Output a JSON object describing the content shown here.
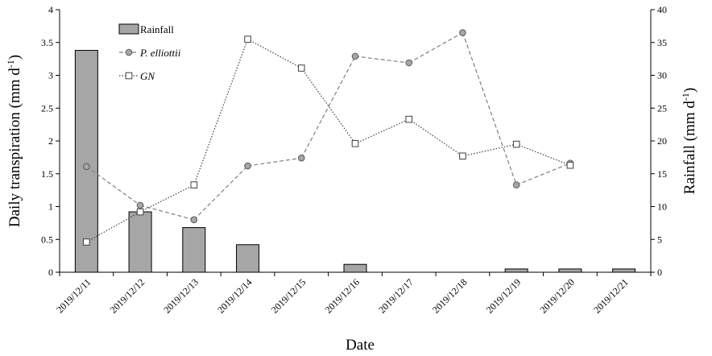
{
  "chart_data": {
    "type": "bar",
    "title": "",
    "xlabel": "Date",
    "ylabel_left": {
      "main": "Daily transpiration (mm d",
      "sup": "-1",
      "end": ")"
    },
    "ylabel_right": {
      "main": "Rainfall (mm d",
      "sup": "-1",
      "end": ")"
    },
    "left_ylim": [
      0,
      4
    ],
    "left_ticks": [
      "0",
      "0.5",
      "1",
      "1.5",
      "2",
      "2.5",
      "3",
      "3.5",
      "4"
    ],
    "right_ylim": [
      0,
      40
    ],
    "right_ticks": [
      "0",
      "5",
      "10",
      "15",
      "20",
      "25",
      "30",
      "35",
      "40"
    ],
    "categories": [
      "2019/12/11",
      "2019/12/12",
      "2019/12/13",
      "2019/12/14",
      "2019/12/15",
      "2019/12/16",
      "2019/12/17",
      "2019/12/18",
      "2019/12/19",
      "2019/12/20",
      "2019/12/21"
    ],
    "grid": false,
    "legend_position": "top-left",
    "series": [
      {
        "name": "Rainfall",
        "kind": "bar",
        "axis": "right",
        "color": "#a6a6a6",
        "values": [
          33.8,
          9.2,
          6.8,
          4.2,
          0,
          1.2,
          0,
          0,
          0.5,
          0.5,
          0.5
        ]
      },
      {
        "name": "P. elliottii",
        "kind": "line",
        "axis": "left",
        "marker": "circle",
        "line_style": "dashed",
        "color": "#7f7f7f",
        "values": [
          1.61,
          1.02,
          0.8,
          1.62,
          1.74,
          3.29,
          3.19,
          3.65,
          1.33,
          1.66,
          null
        ]
      },
      {
        "name": "GN",
        "kind": "line",
        "axis": "left",
        "marker": "square",
        "line_style": "dotted",
        "color": "#404040",
        "values": [
          0.46,
          0.92,
          1.33,
          3.55,
          3.11,
          1.96,
          2.33,
          1.77,
          1.95,
          1.63,
          null
        ]
      }
    ]
  }
}
